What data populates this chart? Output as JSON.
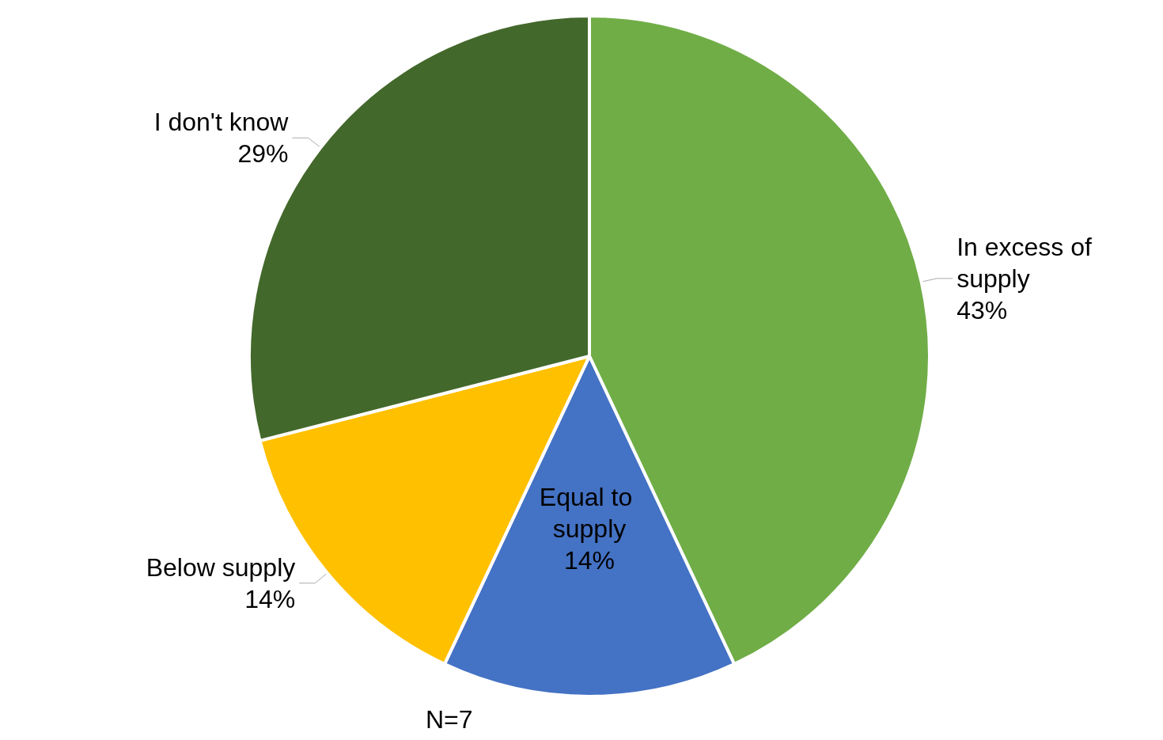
{
  "chart_data": {
    "type": "pie",
    "categories": [
      "In excess of supply",
      "Equal to supply",
      "Below supply",
      "I don't know"
    ],
    "values": [
      43,
      14,
      14,
      29
    ],
    "value_labels": [
      "43%",
      "14%",
      "14%",
      "29%"
    ],
    "colors": [
      "#70ad47",
      "#4472c4",
      "#ffc000",
      "#43682b"
    ],
    "annotations": [
      "N=7"
    ],
    "legend": false
  }
}
